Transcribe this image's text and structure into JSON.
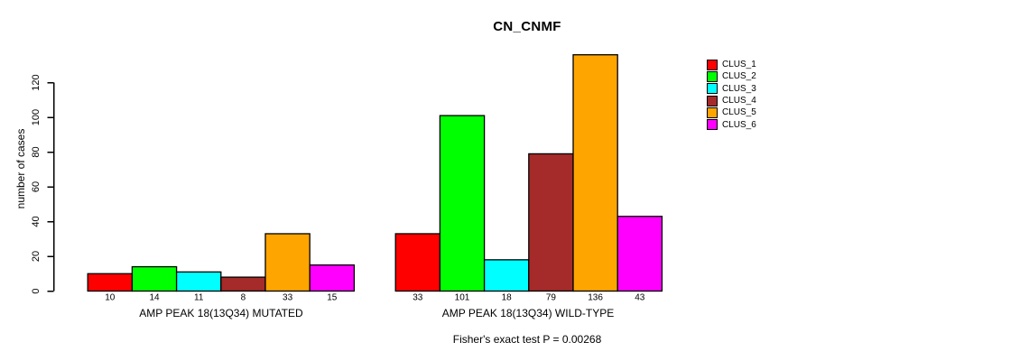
{
  "window": {
    "background": "#ffffff"
  },
  "chart_data": {
    "type": "bar",
    "title": "CN_CNMF",
    "ylabel": "number of cases",
    "xlabel": "",
    "ylim": [
      0,
      136
    ],
    "yticks": [
      0,
      20,
      40,
      60,
      80,
      100,
      120
    ],
    "grid": false,
    "legend_position": "top-right",
    "bar_border_color": "#000000",
    "value_labels_shown": true,
    "categories": [
      "AMP PEAK 18(13Q34) MUTATED",
      "AMP PEAK 18(13Q34) WILD-TYPE"
    ],
    "series": [
      {
        "name": "CLUS_1",
        "color": "#FF0000",
        "values": [
          10,
          33
        ]
      },
      {
        "name": "CLUS_2",
        "color": "#00FF00",
        "values": [
          14,
          101
        ]
      },
      {
        "name": "CLUS_3",
        "color": "#00FFFF",
        "values": [
          11,
          18
        ]
      },
      {
        "name": "CLUS_4",
        "color": "#A52A2A",
        "values": [
          8,
          79
        ]
      },
      {
        "name": "CLUS_5",
        "color": "#FFA500",
        "values": [
          33,
          136
        ]
      },
      {
        "name": "CLUS_6",
        "color": "#FF00FF",
        "values": [
          15,
          43
        ]
      }
    ]
  },
  "footer": {
    "note": "Fisher's exact test P = 0.00268"
  }
}
